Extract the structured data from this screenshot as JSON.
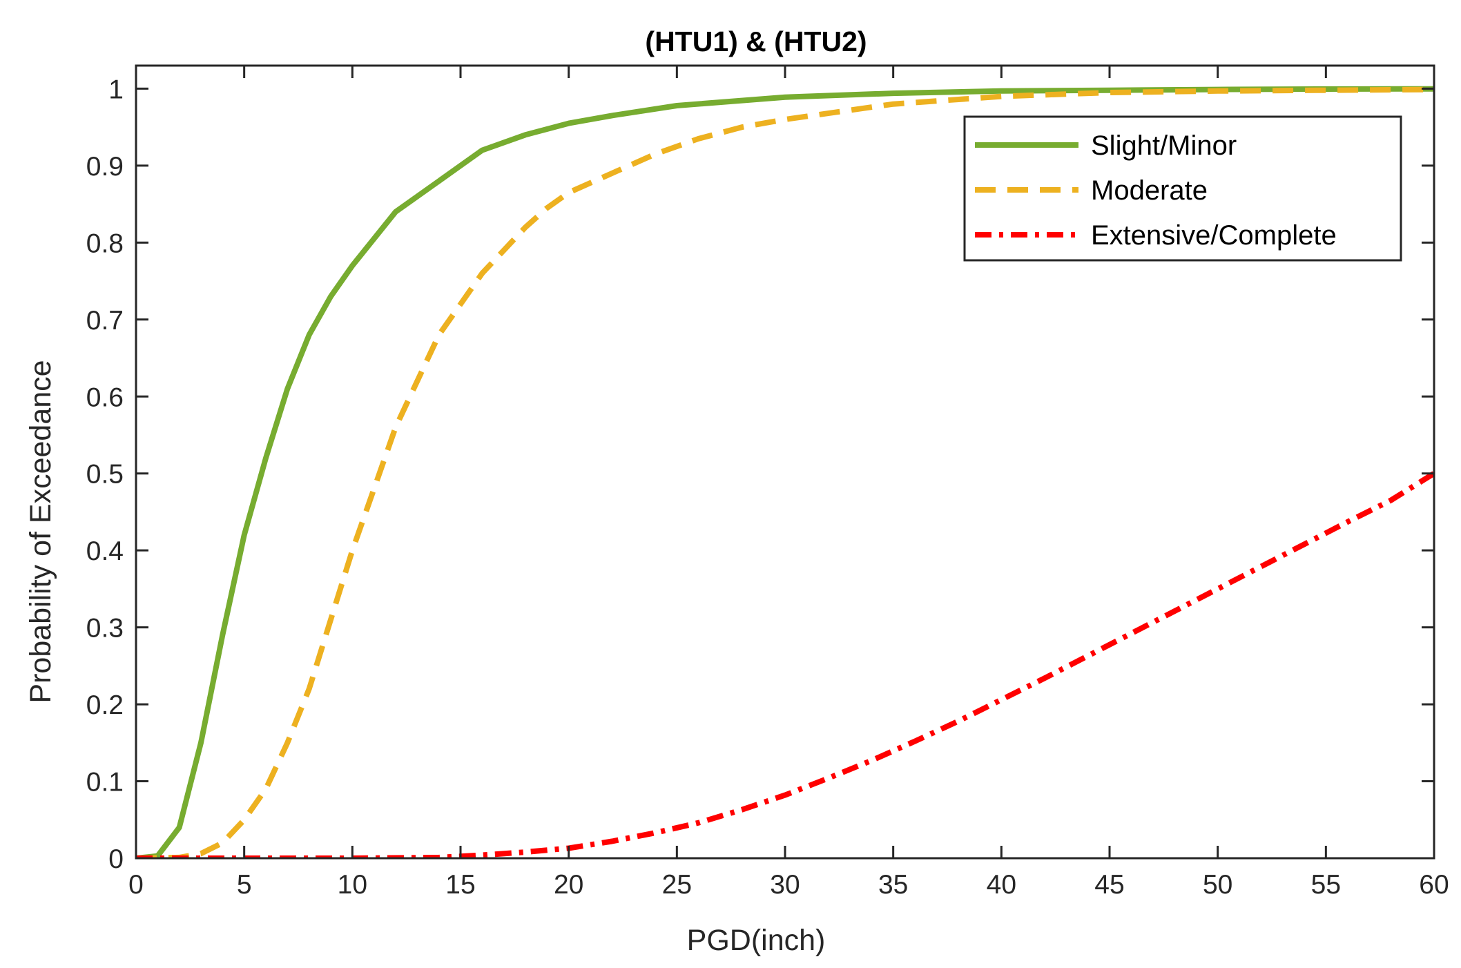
{
  "chart_data": {
    "type": "line",
    "title": "(HTU1) & (HTU2)",
    "xlabel": "PGD(inch)",
    "ylabel": "Probability of Exceedance",
    "xlim": [
      0,
      60
    ],
    "ylim": [
      0,
      1.03
    ],
    "xticks": [
      "0",
      "5",
      "10",
      "15",
      "20",
      "25",
      "30",
      "35",
      "40",
      "45",
      "50",
      "55",
      "60"
    ],
    "yticks": [
      "0",
      "0.1",
      "0.2",
      "0.3",
      "0.4",
      "0.5",
      "0.6",
      "0.7",
      "0.8",
      "0.9",
      "1"
    ],
    "grid": false,
    "legend_position": "top-right",
    "series": [
      {
        "name": "Slight/Minor",
        "color": "#77ac30",
        "style": "solid",
        "x": [
          0,
          1,
          2,
          3,
          4,
          5,
          6,
          7,
          8,
          9,
          10,
          12,
          14,
          16,
          18,
          20,
          22,
          25,
          30,
          35,
          40,
          45,
          50,
          55,
          60
        ],
        "y": [
          0,
          0.003,
          0.04,
          0.15,
          0.29,
          0.42,
          0.52,
          0.61,
          0.68,
          0.73,
          0.77,
          0.84,
          0.88,
          0.92,
          0.94,
          0.955,
          0.965,
          0.978,
          0.989,
          0.994,
          0.997,
          0.998,
          0.999,
          0.9995,
          0.9998
        ]
      },
      {
        "name": "Moderate",
        "color": "#edb120",
        "style": "dashed",
        "x": [
          0,
          2,
          3,
          4,
          5,
          6,
          7,
          8,
          9,
          10,
          11,
          12,
          13,
          14,
          15,
          16,
          17,
          18,
          19,
          20,
          22,
          24,
          26,
          28,
          30,
          35,
          40,
          45,
          50,
          55,
          60
        ],
        "y": [
          0,
          0.001,
          0.006,
          0.02,
          0.05,
          0.09,
          0.15,
          0.22,
          0.31,
          0.4,
          0.48,
          0.56,
          0.62,
          0.68,
          0.72,
          0.76,
          0.79,
          0.82,
          0.845,
          0.865,
          0.89,
          0.915,
          0.935,
          0.95,
          0.96,
          0.98,
          0.99,
          0.995,
          0.997,
          0.998,
          0.999
        ]
      },
      {
        "name": "Extensive/Complete",
        "color": "#ff0000",
        "style": "dashdot",
        "x": [
          0,
          10,
          14,
          16,
          18,
          20,
          22,
          24,
          26,
          28,
          30,
          32,
          34,
          36,
          38,
          40,
          42,
          44,
          46,
          48,
          50,
          52,
          54,
          56,
          58,
          60
        ],
        "y": [
          0,
          0,
          0.001,
          0.004,
          0.008,
          0.013,
          0.022,
          0.033,
          0.046,
          0.063,
          0.082,
          0.104,
          0.127,
          0.152,
          0.178,
          0.206,
          0.234,
          0.263,
          0.292,
          0.321,
          0.35,
          0.379,
          0.408,
          0.437,
          0.465,
          0.5
        ]
      }
    ]
  }
}
